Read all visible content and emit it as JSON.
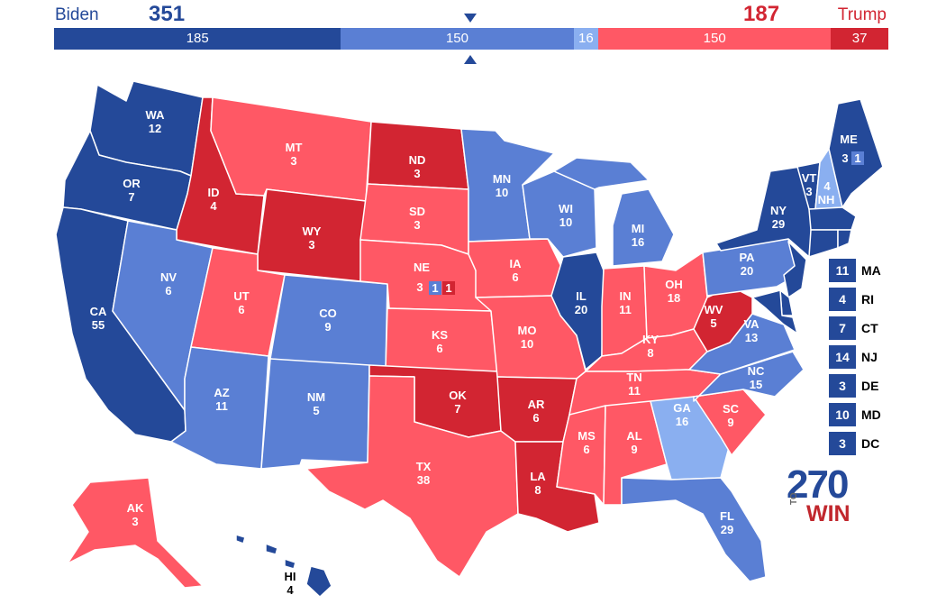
{
  "header": {
    "biden_name": "Biden",
    "biden_total": "351",
    "trump_name": "Trump",
    "trump_total": "187"
  },
  "bar": [
    {
      "label": "185",
      "value": 185,
      "color": "#244999"
    },
    {
      "label": "150",
      "value": 150,
      "color": "#5a7fd4"
    },
    {
      "label": "16",
      "value": 16,
      "color": "#8aaff0"
    },
    {
      "label": "150",
      "value": 150,
      "color": "#ff5865"
    },
    {
      "label": "37",
      "value": 37,
      "color": "#d22532"
    }
  ],
  "colors": {
    "safe_dem": "#244999",
    "likely_dem": "#5a7fd4",
    "lean_dem": "#8aaff0",
    "likely_rep": "#ff5865",
    "safe_rep": "#d22532"
  },
  "states": {
    "WA": {
      "abbr": "WA",
      "ev": "12"
    },
    "OR": {
      "abbr": "OR",
      "ev": "7"
    },
    "CA": {
      "abbr": "CA",
      "ev": "55"
    },
    "ID": {
      "abbr": "ID",
      "ev": "4"
    },
    "NV": {
      "abbr": "NV",
      "ev": "6"
    },
    "MT": {
      "abbr": "MT",
      "ev": "3"
    },
    "WY": {
      "abbr": "WY",
      "ev": "3"
    },
    "UT": {
      "abbr": "UT",
      "ev": "6"
    },
    "AZ": {
      "abbr": "AZ",
      "ev": "11"
    },
    "CO": {
      "abbr": "CO",
      "ev": "9"
    },
    "NM": {
      "abbr": "NM",
      "ev": "5"
    },
    "ND": {
      "abbr": "ND",
      "ev": "3"
    },
    "SD": {
      "abbr": "SD",
      "ev": "3"
    },
    "NE": {
      "abbr": "NE",
      "ev": "3",
      "cd2": "1",
      "cd3": "1"
    },
    "KS": {
      "abbr": "KS",
      "ev": "6"
    },
    "OK": {
      "abbr": "OK",
      "ev": "7"
    },
    "TX": {
      "abbr": "TX",
      "ev": "38"
    },
    "MN": {
      "abbr": "MN",
      "ev": "10"
    },
    "IA": {
      "abbr": "IA",
      "ev": "6"
    },
    "MO": {
      "abbr": "MO",
      "ev": "10"
    },
    "AR": {
      "abbr": "AR",
      "ev": "6"
    },
    "LA": {
      "abbr": "LA",
      "ev": "8"
    },
    "WI": {
      "abbr": "WI",
      "ev": "10"
    },
    "IL": {
      "abbr": "IL",
      "ev": "20"
    },
    "MI": {
      "abbr": "MI",
      "ev": "16"
    },
    "IN": {
      "abbr": "IN",
      "ev": "11"
    },
    "OH": {
      "abbr": "OH",
      "ev": "18"
    },
    "KY": {
      "abbr": "KY",
      "ev": "8"
    },
    "TN": {
      "abbr": "TN",
      "ev": "11"
    },
    "MS": {
      "abbr": "MS",
      "ev": "6"
    },
    "AL": {
      "abbr": "AL",
      "ev": "9"
    },
    "GA": {
      "abbr": "GA",
      "ev": "16"
    },
    "FL": {
      "abbr": "FL",
      "ev": "29"
    },
    "SC": {
      "abbr": "SC",
      "ev": "9"
    },
    "NC": {
      "abbr": "NC",
      "ev": "15"
    },
    "VA": {
      "abbr": "VA",
      "ev": "13"
    },
    "WV": {
      "abbr": "WV",
      "ev": "5"
    },
    "PA": {
      "abbr": "PA",
      "ev": "20"
    },
    "NY": {
      "abbr": "NY",
      "ev": "29"
    },
    "VT": {
      "abbr": "VT",
      "ev": "3"
    },
    "NH": {
      "abbr": "NH",
      "ev": "4"
    },
    "ME": {
      "abbr": "ME",
      "ev": "3",
      "cd2": "1"
    },
    "AK": {
      "abbr": "AK",
      "ev": "3"
    },
    "HI": {
      "abbr": "HI",
      "ev": "4"
    }
  },
  "small_states": [
    {
      "ev": "11",
      "abbr": "MA"
    },
    {
      "ev": "4",
      "abbr": "RI"
    },
    {
      "ev": "7",
      "abbr": "CT"
    },
    {
      "ev": "14",
      "abbr": "NJ"
    },
    {
      "ev": "3",
      "abbr": "DE"
    },
    {
      "ev": "10",
      "abbr": "MD"
    },
    {
      "ev": "3",
      "abbr": "DC"
    }
  ],
  "logo": {
    "number": "270",
    "to": "TO",
    "win": "WIN"
  }
}
